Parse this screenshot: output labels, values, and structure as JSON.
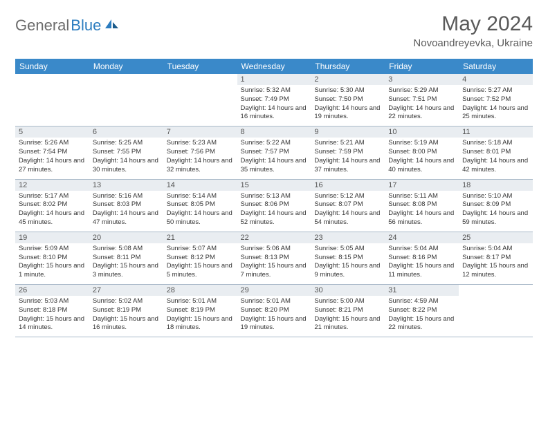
{
  "logo": {
    "text_gray": "General",
    "text_blue": "Blue"
  },
  "title": "May 2024",
  "location": "Novoandreyevka, Ukraine",
  "colors": {
    "header_bg": "#3a89c9",
    "daynum_bg": "#e9edf1",
    "row_border": "#a8b8c8",
    "logo_blue": "#2b7cbf",
    "text_gray": "#5a5a5a"
  },
  "weekdays": [
    "Sunday",
    "Monday",
    "Tuesday",
    "Wednesday",
    "Thursday",
    "Friday",
    "Saturday"
  ],
  "weeks": [
    [
      null,
      null,
      null,
      {
        "n": "1",
        "sunrise": "5:32 AM",
        "sunset": "7:49 PM",
        "daylight": "14 hours and 16 minutes."
      },
      {
        "n": "2",
        "sunrise": "5:30 AM",
        "sunset": "7:50 PM",
        "daylight": "14 hours and 19 minutes."
      },
      {
        "n": "3",
        "sunrise": "5:29 AM",
        "sunset": "7:51 PM",
        "daylight": "14 hours and 22 minutes."
      },
      {
        "n": "4",
        "sunrise": "5:27 AM",
        "sunset": "7:52 PM",
        "daylight": "14 hours and 25 minutes."
      }
    ],
    [
      {
        "n": "5",
        "sunrise": "5:26 AM",
        "sunset": "7:54 PM",
        "daylight": "14 hours and 27 minutes."
      },
      {
        "n": "6",
        "sunrise": "5:25 AM",
        "sunset": "7:55 PM",
        "daylight": "14 hours and 30 minutes."
      },
      {
        "n": "7",
        "sunrise": "5:23 AM",
        "sunset": "7:56 PM",
        "daylight": "14 hours and 32 minutes."
      },
      {
        "n": "8",
        "sunrise": "5:22 AM",
        "sunset": "7:57 PM",
        "daylight": "14 hours and 35 minutes."
      },
      {
        "n": "9",
        "sunrise": "5:21 AM",
        "sunset": "7:59 PM",
        "daylight": "14 hours and 37 minutes."
      },
      {
        "n": "10",
        "sunrise": "5:19 AM",
        "sunset": "8:00 PM",
        "daylight": "14 hours and 40 minutes."
      },
      {
        "n": "11",
        "sunrise": "5:18 AM",
        "sunset": "8:01 PM",
        "daylight": "14 hours and 42 minutes."
      }
    ],
    [
      {
        "n": "12",
        "sunrise": "5:17 AM",
        "sunset": "8:02 PM",
        "daylight": "14 hours and 45 minutes."
      },
      {
        "n": "13",
        "sunrise": "5:16 AM",
        "sunset": "8:03 PM",
        "daylight": "14 hours and 47 minutes."
      },
      {
        "n": "14",
        "sunrise": "5:14 AM",
        "sunset": "8:05 PM",
        "daylight": "14 hours and 50 minutes."
      },
      {
        "n": "15",
        "sunrise": "5:13 AM",
        "sunset": "8:06 PM",
        "daylight": "14 hours and 52 minutes."
      },
      {
        "n": "16",
        "sunrise": "5:12 AM",
        "sunset": "8:07 PM",
        "daylight": "14 hours and 54 minutes."
      },
      {
        "n": "17",
        "sunrise": "5:11 AM",
        "sunset": "8:08 PM",
        "daylight": "14 hours and 56 minutes."
      },
      {
        "n": "18",
        "sunrise": "5:10 AM",
        "sunset": "8:09 PM",
        "daylight": "14 hours and 59 minutes."
      }
    ],
    [
      {
        "n": "19",
        "sunrise": "5:09 AM",
        "sunset": "8:10 PM",
        "daylight": "15 hours and 1 minute."
      },
      {
        "n": "20",
        "sunrise": "5:08 AM",
        "sunset": "8:11 PM",
        "daylight": "15 hours and 3 minutes."
      },
      {
        "n": "21",
        "sunrise": "5:07 AM",
        "sunset": "8:12 PM",
        "daylight": "15 hours and 5 minutes."
      },
      {
        "n": "22",
        "sunrise": "5:06 AM",
        "sunset": "8:13 PM",
        "daylight": "15 hours and 7 minutes."
      },
      {
        "n": "23",
        "sunrise": "5:05 AM",
        "sunset": "8:15 PM",
        "daylight": "15 hours and 9 minutes."
      },
      {
        "n": "24",
        "sunrise": "5:04 AM",
        "sunset": "8:16 PM",
        "daylight": "15 hours and 11 minutes."
      },
      {
        "n": "25",
        "sunrise": "5:04 AM",
        "sunset": "8:17 PM",
        "daylight": "15 hours and 12 minutes."
      }
    ],
    [
      {
        "n": "26",
        "sunrise": "5:03 AM",
        "sunset": "8:18 PM",
        "daylight": "15 hours and 14 minutes."
      },
      {
        "n": "27",
        "sunrise": "5:02 AM",
        "sunset": "8:19 PM",
        "daylight": "15 hours and 16 minutes."
      },
      {
        "n": "28",
        "sunrise": "5:01 AM",
        "sunset": "8:19 PM",
        "daylight": "15 hours and 18 minutes."
      },
      {
        "n": "29",
        "sunrise": "5:01 AM",
        "sunset": "8:20 PM",
        "daylight": "15 hours and 19 minutes."
      },
      {
        "n": "30",
        "sunrise": "5:00 AM",
        "sunset": "8:21 PM",
        "daylight": "15 hours and 21 minutes."
      },
      {
        "n": "31",
        "sunrise": "4:59 AM",
        "sunset": "8:22 PM",
        "daylight": "15 hours and 22 minutes."
      },
      null
    ]
  ],
  "labels": {
    "sunrise": "Sunrise:",
    "sunset": "Sunset:",
    "daylight": "Daylight:"
  }
}
